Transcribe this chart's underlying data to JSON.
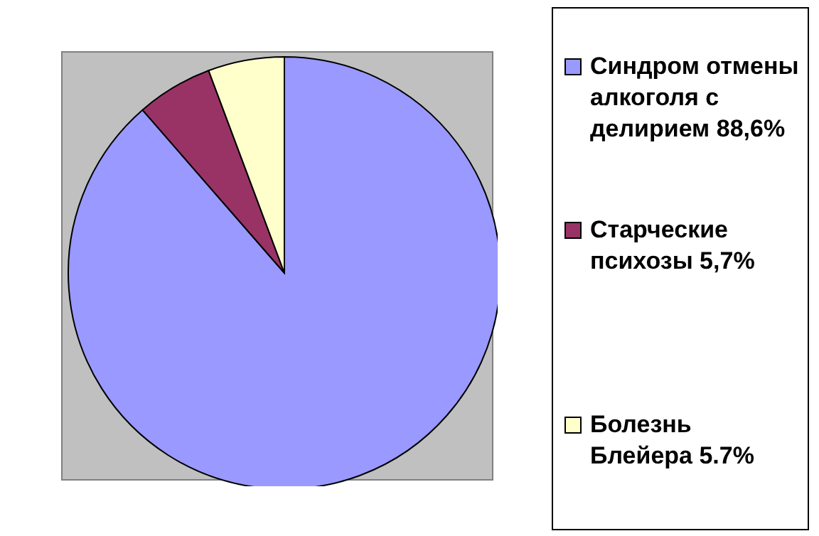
{
  "chart_data": {
    "type": "pie",
    "categories": [
      "Синдром отмены алкоголя с делирием 88,6%",
      "Старческие психозы 5,7%",
      "Болезнь Блейера 5.7%"
    ],
    "values": [
      88.6,
      5.7,
      5.7
    ],
    "colors": [
      "#9999ff",
      "#993366",
      "#ffffcc"
    ],
    "legend": "right"
  }
}
